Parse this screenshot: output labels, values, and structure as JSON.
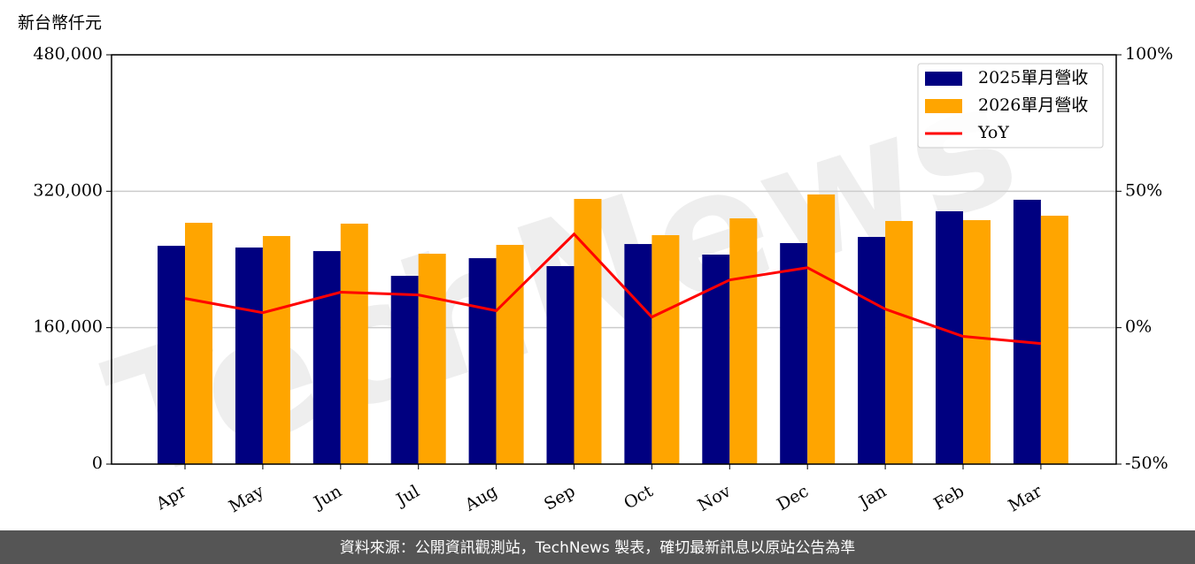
{
  "chart_data": {
    "type": "bar-line",
    "y_label": "新台幣仟元",
    "watermark": "TechNews",
    "footer": "資料來源：公開資訊觀測站，TechNews 製表，確切最新訊息以原站公告為準",
    "categories": [
      "Apr",
      "May",
      "Jun",
      "Jul",
      "Aug",
      "Sep",
      "Oct",
      "Nov",
      "Dec",
      "Jan",
      "Feb",
      "Mar"
    ],
    "series": [
      {
        "name": "2025單月營收",
        "type": "bar",
        "color": "#000080",
        "values": [
          256000,
          254000,
          249800,
          220800,
          241500,
          232200,
          258100,
          245700,
          259200,
          266400,
          296500,
          310000
        ]
      },
      {
        "name": "2026單月營收",
        "type": "bar",
        "color": "#ffa500",
        "values": [
          283000,
          267500,
          282000,
          246700,
          257100,
          311000,
          268500,
          288200,
          316200,
          285100,
          286100,
          291300
        ]
      },
      {
        "name": "YoY",
        "type": "line",
        "axis": "y2",
        "color": "#ff0000",
        "values": [
          10.7,
          5.5,
          13,
          12,
          6.2,
          34.3,
          3.9,
          17.5,
          22,
          6.8,
          -3.2,
          -5.8
        ]
      }
    ],
    "ylim": [
      0,
      480000
    ],
    "yticks": [
      0,
      {
        "value": 160000,
        "label": "160,000"
      },
      {
        "value": 320000,
        "label": "320,000"
      },
      {
        "value": 480000,
        "label": "480,000"
      }
    ],
    "y2lim": [
      -50,
      100
    ],
    "y2ticks": [
      {
        "value": -50,
        "label": "-50%"
      },
      {
        "value": 0,
        "label": "0%"
      },
      {
        "value": 50,
        "label": "50%"
      },
      {
        "value": 100,
        "label": "100%"
      }
    ],
    "grid": true,
    "legend": "upper right"
  }
}
